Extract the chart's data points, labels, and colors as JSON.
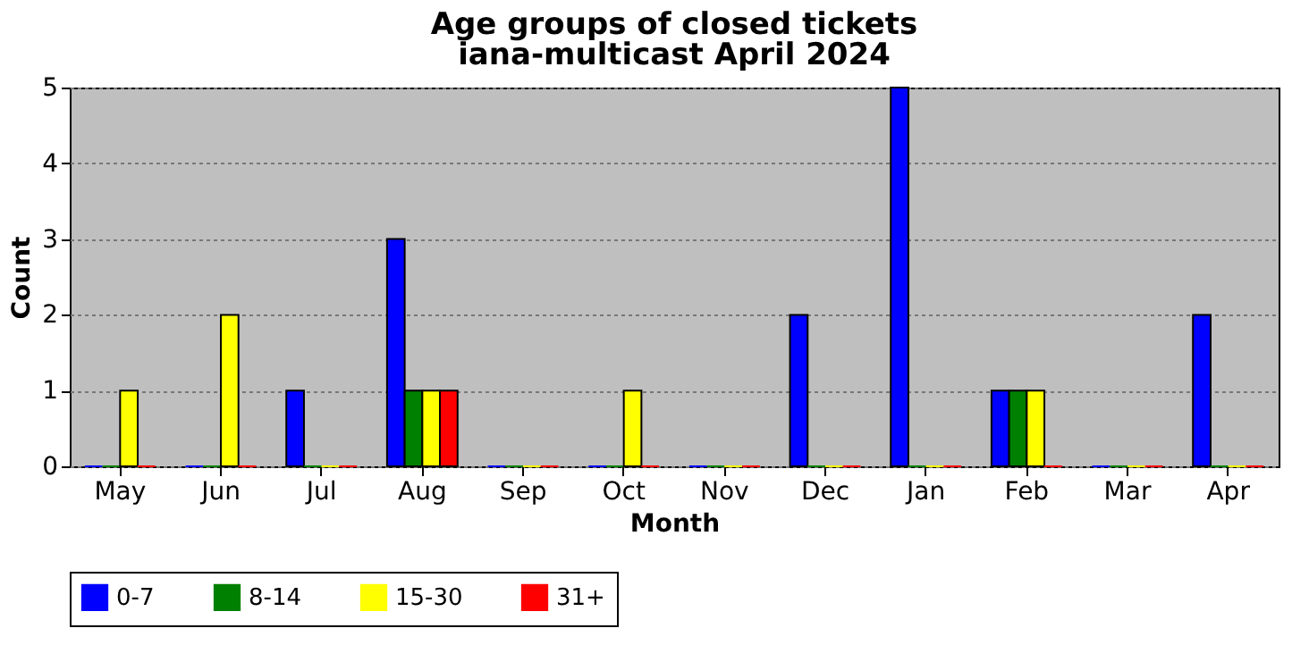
{
  "chart_data": {
    "type": "bar",
    "title": "Age groups of closed tickets",
    "subtitle": "iana-multicast April 2024",
    "xlabel": "Month",
    "ylabel": "Count",
    "categories": [
      "May",
      "Jun",
      "Jul",
      "Aug",
      "Sep",
      "Oct",
      "Nov",
      "Dec",
      "Jan",
      "Feb",
      "Mar",
      "Apr"
    ],
    "series": [
      {
        "name": "0-7",
        "color": "#0000ff",
        "values": [
          0,
          0,
          1,
          3,
          0,
          0,
          0,
          2,
          5,
          1,
          0,
          2
        ]
      },
      {
        "name": "8-14",
        "color": "#008000",
        "values": [
          0,
          0,
          0,
          1,
          0,
          0,
          0,
          0,
          0,
          1,
          0,
          0
        ]
      },
      {
        "name": "15-30",
        "color": "#ffff00",
        "values": [
          1,
          2,
          0,
          1,
          0,
          1,
          0,
          0,
          0,
          1,
          0,
          0
        ]
      },
      {
        "name": "31+",
        "color": "#ff0000",
        "values": [
          0,
          0,
          0,
          1,
          0,
          0,
          0,
          0,
          0,
          0,
          0,
          0
        ]
      }
    ],
    "ylim": [
      0,
      5
    ],
    "yticks": [
      0,
      1,
      2,
      3,
      4,
      5
    ],
    "grid": "y",
    "legend": "bottom"
  }
}
